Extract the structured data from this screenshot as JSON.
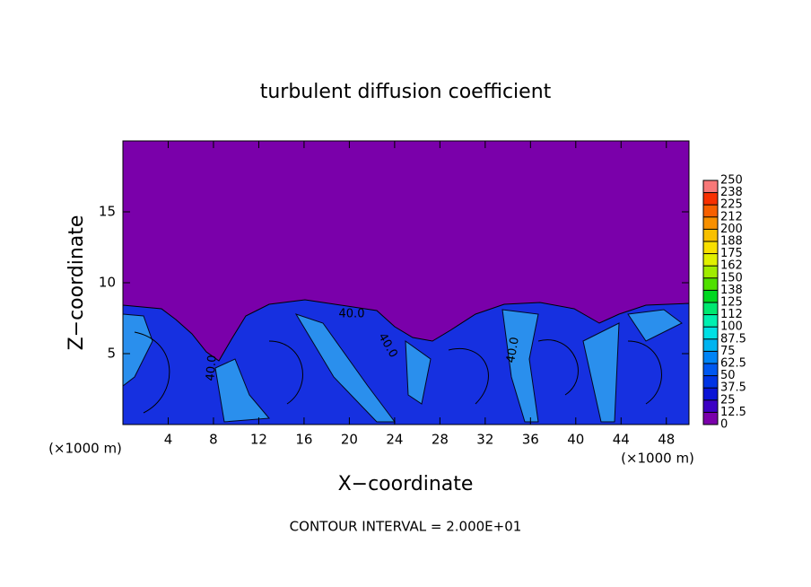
{
  "chart_data": {
    "type": "contour",
    "title": "turbulent diffusion coefficient",
    "x_label": "X−coordinate",
    "y_label": "Z−coordinate",
    "x_unit_left": "(×1000 m)",
    "x_unit_right": "(×1000 m)",
    "footer": "CONTOUR INTERVAL = 2.000E+01",
    "contour_labels": [
      "40.0",
      "40.0",
      "40.0",
      "40.0"
    ],
    "xlim": [
      0,
      50
    ],
    "xticks": [
      4,
      8,
      12,
      16,
      20,
      24,
      28,
      32,
      36,
      40,
      44,
      48
    ],
    "ylim": [
      0,
      20
    ],
    "yticks": [
      5,
      10,
      15
    ],
    "colorbar": {
      "lim": [
        0,
        250
      ],
      "ticks": [
        0,
        12.5,
        25,
        37.5,
        50,
        62.5,
        75,
        87.5,
        100,
        {
          "value": 112.5,
          "label": "112"
        },
        125,
        {
          "value": 137.5,
          "label": "138"
        },
        150,
        {
          "value": 162.5,
          "label": "162"
        },
        175,
        {
          "value": 187.5,
          "label": "188"
        },
        200,
        {
          "value": 212.5,
          "label": "212"
        },
        225,
        {
          "value": 237.5,
          "label": "238"
        },
        250
      ],
      "colors": [
        "#7a00aa",
        "#3c00c4",
        "#0a14d6",
        "#0034e4",
        "#0058f0",
        "#0084f6",
        "#00b4f0",
        "#00e0e4",
        "#00f0b0",
        "#00e870",
        "#00d820",
        "#50e000",
        "#a0ec00",
        "#e0f000",
        "#f8e000",
        "#f8c000",
        "#f89000",
        "#f86000",
        "#f83000",
        "#f87878"
      ]
    }
  }
}
